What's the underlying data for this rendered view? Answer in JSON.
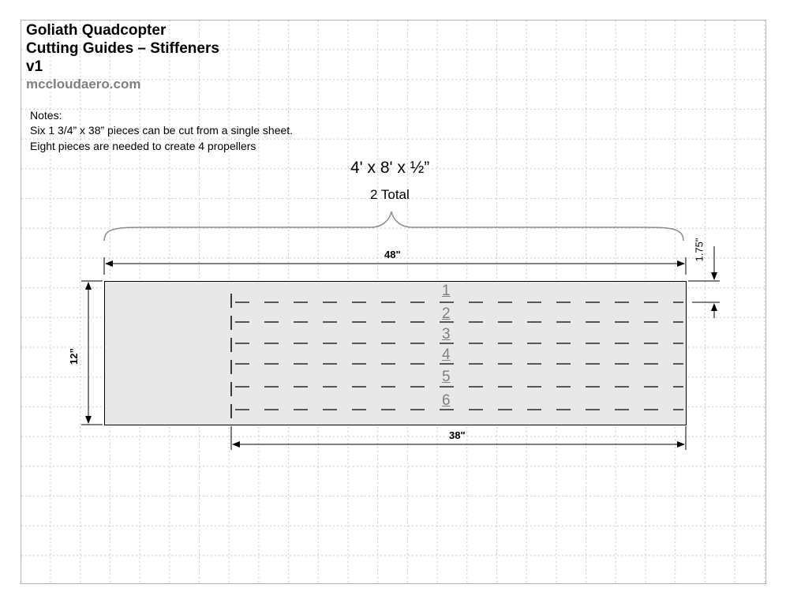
{
  "header": {
    "title_line1": "Goliath Quadcopter",
    "title_line2": "Cutting Guides – Stiffeners",
    "version": "v1",
    "website": "mccloudaero.com"
  },
  "notes": {
    "heading": "Notes:",
    "line1": "Six 1 3/4” x 38” pieces can be cut from a single sheet.",
    "line2": "Eight pieces are needed to create 4 propellers"
  },
  "sheet_spec": {
    "size": "4' x 8' x ½”",
    "quantity": "2 Total"
  },
  "dimensions": {
    "width": "48\"",
    "height": "12”",
    "strip_length": "38\"",
    "strip_width": "1.75\""
  },
  "strips": [
    "1",
    "2",
    "3",
    "4",
    "5",
    "6"
  ],
  "colors": {
    "board_fill": "#e8e8e8",
    "grid_line": "#c8c8c8",
    "brace": "#8c8c8c",
    "strip_number": "#7f7f7f",
    "website": "#7f7f7f"
  }
}
